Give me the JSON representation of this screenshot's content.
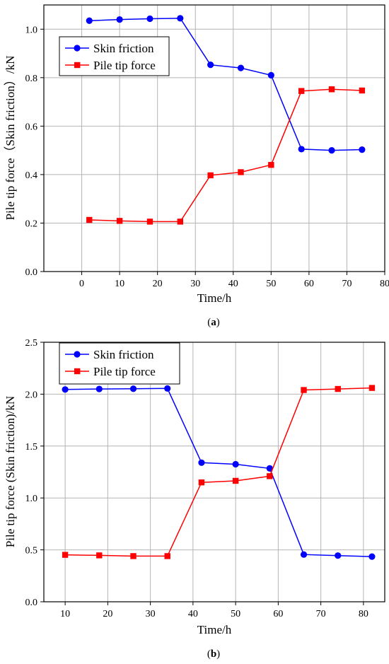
{
  "chart_data": [
    {
      "type": "line",
      "caption": "(a)",
      "caption_bold": "a",
      "xlabel": "Time/h",
      "ylabel": "Pile tip force（Skin friction）/kN",
      "xlim": [
        -10,
        80
      ],
      "ylim": [
        0.0,
        1.1
      ],
      "xticks": [
        0,
        10,
        20,
        30,
        40,
        50,
        60,
        70,
        80
      ],
      "yticks": [
        0.0,
        0.2,
        0.4,
        0.6,
        0.8,
        1.0
      ],
      "xtick_labels": [
        "0",
        "10",
        "20",
        "30",
        "40",
        "50",
        "60",
        "70",
        "80"
      ],
      "ytick_labels": [
        "0.0",
        "0.2",
        "0.4",
        "0.6",
        "0.8",
        "1.0"
      ],
      "grid": true,
      "legend_position": "top-left",
      "x": [
        2,
        10,
        18,
        26,
        34,
        42,
        50,
        58,
        66,
        74
      ],
      "series": [
        {
          "name": "Skin friction",
          "color": "#0000ff",
          "marker": "circle",
          "values": [
            1.035,
            1.04,
            1.043,
            1.045,
            0.853,
            0.84,
            0.81,
            0.505,
            0.5,
            0.503
          ]
        },
        {
          "name": "Pile tip force",
          "color": "#ff0000",
          "marker": "square",
          "values": [
            0.213,
            0.209,
            0.206,
            0.206,
            0.397,
            0.41,
            0.44,
            0.745,
            0.752,
            0.747
          ]
        }
      ]
    },
    {
      "type": "line",
      "caption": "(b)",
      "caption_bold": "b",
      "xlabel": "Time/h",
      "ylabel": "Pile tip force (Skin friction)/kN",
      "xlim": [
        5,
        85
      ],
      "ylim": [
        0.0,
        2.5
      ],
      "xticks": [
        10,
        20,
        30,
        40,
        50,
        60,
        70,
        80
      ],
      "yticks": [
        0.0,
        0.5,
        1.0,
        1.5,
        2.0,
        2.5
      ],
      "xtick_labels": [
        "10",
        "20",
        "30",
        "40",
        "50",
        "60",
        "70",
        "80"
      ],
      "ytick_labels": [
        "0.0",
        "0.5",
        "1.0",
        "1.5",
        "2.0",
        "2.5"
      ],
      "grid": true,
      "legend_position": "top-left",
      "x": [
        10,
        18,
        26,
        34,
        42,
        50,
        58,
        66,
        74,
        82
      ],
      "series": [
        {
          "name": "Skin friction",
          "color": "#0000ff",
          "marker": "circle",
          "values": [
            2.045,
            2.05,
            2.052,
            2.055,
            1.34,
            1.325,
            1.285,
            0.455,
            0.445,
            0.435
          ]
        },
        {
          "name": "Pile tip force",
          "color": "#ff0000",
          "marker": "square",
          "values": [
            0.452,
            0.447,
            0.44,
            0.44,
            1.15,
            1.165,
            1.21,
            2.04,
            2.05,
            2.06
          ]
        }
      ]
    }
  ]
}
